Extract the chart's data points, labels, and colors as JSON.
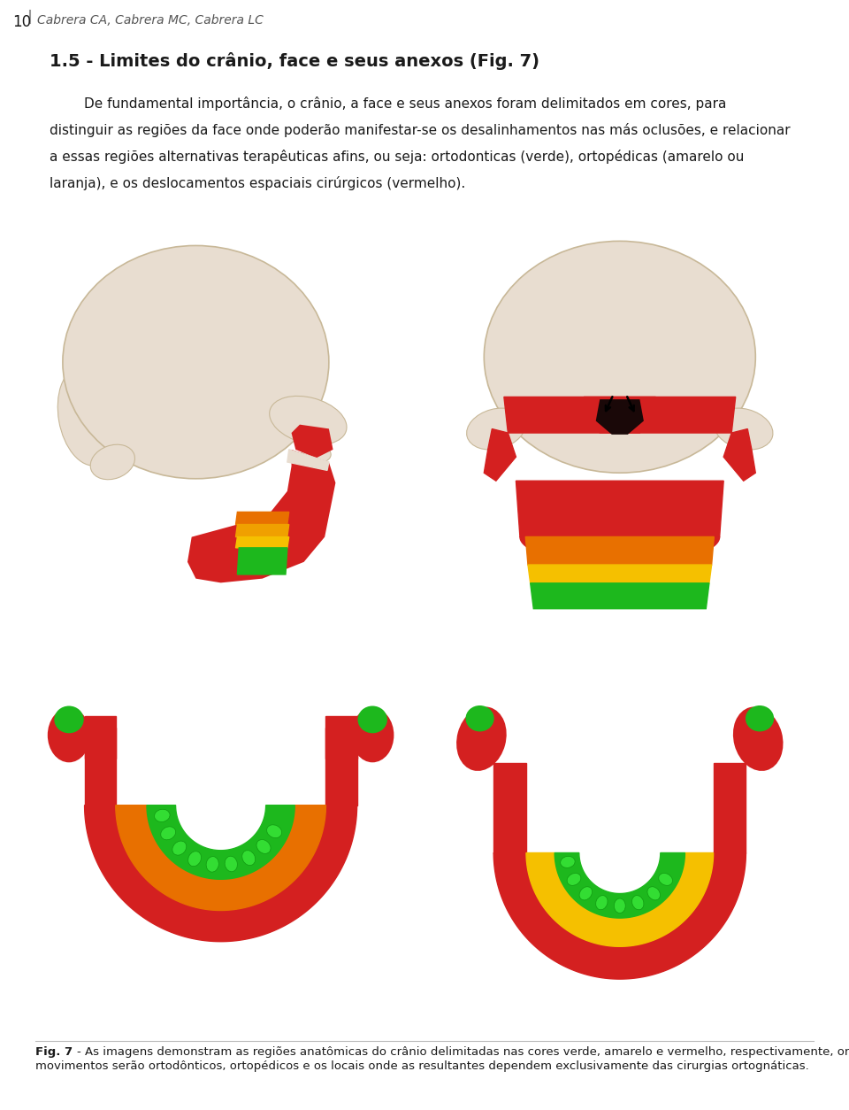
{
  "page_number": "10",
  "header_text": "Cabrera CA, Cabrera MC, Cabrera LC",
  "section_title": "1.5 - Limites do crânio, face e seus anexos (Fig. 7)",
  "body_line1": "        De fundamental importância, o crânio, a face e seus anexos foram delimitados em cores, para",
  "body_line2": "distinguir as regiões da face onde poderão manifestar-se os desalinhamentos nas más oclusões, e relacionar",
  "body_line3": "a essas regiões alternativas terapêuticas afins, ou seja: ortodonticas (verde), ortopédicas (amarelo ou",
  "body_line4": "laranja), e os deslocamentos espaciais cirúrgicos (vermelho).",
  "caption_text": "Fig. 7 - As imagens demonstram as regiões anatômicas do crânio delimitadas nas cores verde, amarelo e vermelho, respectivamente, onde os movimentos serão ortodonticos, ortopédicos e os locais onde as resultantes dependem exclusivamente das cirurgias ortognáticas.",
  "bg": "#ffffff",
  "text_col": "#1a1a1a",
  "bone_col": "#e8ddd0",
  "bone_edge": "#c8b898",
  "red_col": "#d42020",
  "orange_col": "#e86800",
  "yellow_col": "#f5c000",
  "green_col": "#1db81d",
  "dark_col": "#2a0a0a"
}
